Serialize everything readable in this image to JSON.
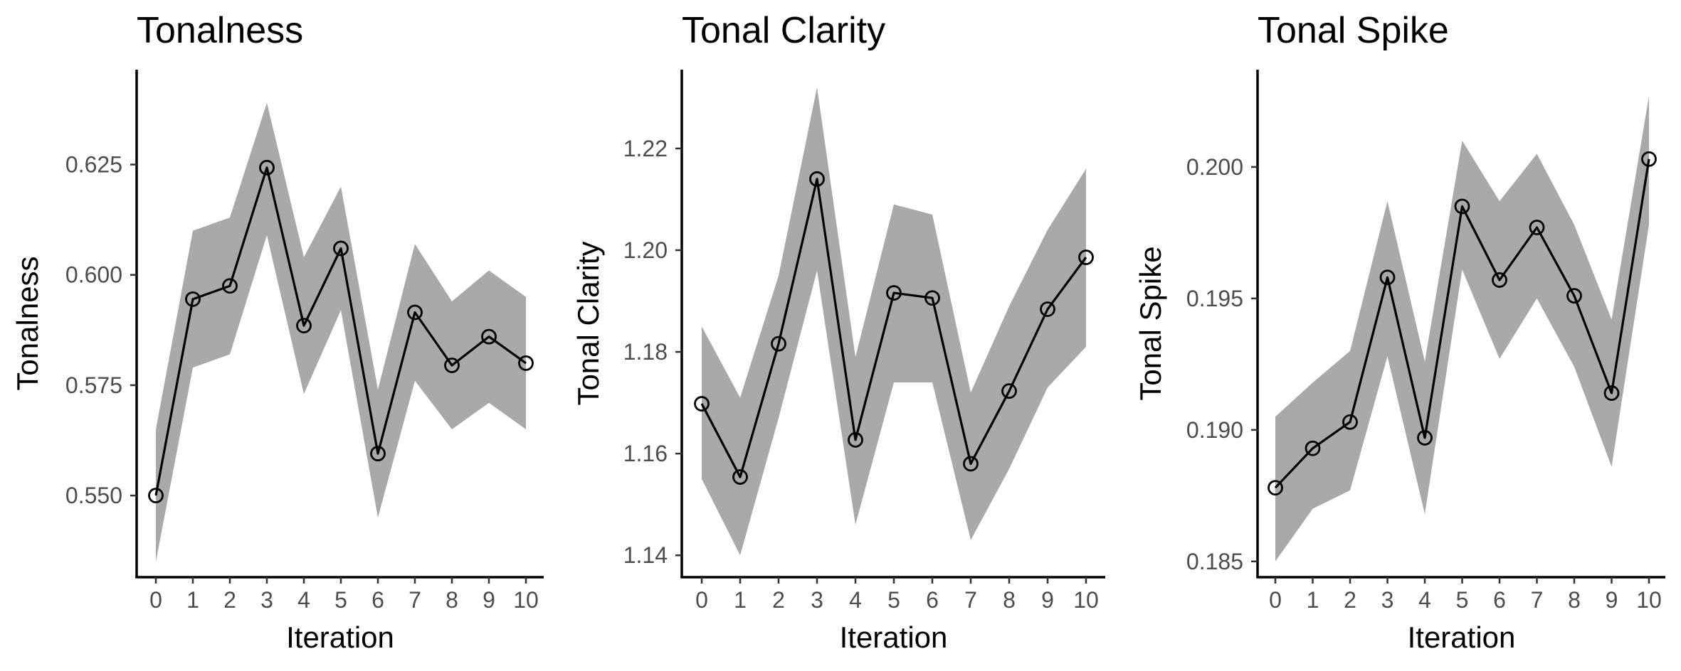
{
  "chart_data": [
    {
      "type": "line",
      "title": "Tonalness",
      "xlabel": "Iteration",
      "ylabel": "Tonalness",
      "x": [
        0,
        1,
        2,
        3,
        4,
        5,
        6,
        7,
        8,
        9,
        10
      ],
      "xticks": [
        "0",
        "1",
        "2",
        "3",
        "4",
        "5",
        "6",
        "7",
        "8",
        "9",
        "10"
      ],
      "y_ticks": [
        "0.550",
        "0.575",
        "0.600",
        "0.625"
      ],
      "ylim": [
        0.5315,
        0.6465
      ],
      "series": [
        {
          "values": [
            0.55,
            0.5945,
            0.5975,
            0.6243,
            0.5885,
            0.606,
            0.5595,
            0.5915,
            0.5795,
            0.586,
            0.58
          ],
          "lower": [
            0.535,
            0.579,
            0.582,
            0.609,
            0.573,
            0.592,
            0.545,
            0.576,
            0.565,
            0.571,
            0.565
          ],
          "upper": [
            0.565,
            0.61,
            0.613,
            0.639,
            0.604,
            0.62,
            0.574,
            0.607,
            0.594,
            0.601,
            0.595
          ]
        }
      ],
      "grid": false,
      "colors": {
        "line": "#000000",
        "ribbon": "#a9a9a9"
      }
    },
    {
      "type": "line",
      "title": "Tonal Clarity",
      "xlabel": "Iteration",
      "ylabel": "Tonal Clarity",
      "x": [
        0,
        1,
        2,
        3,
        4,
        5,
        6,
        7,
        8,
        9,
        10
      ],
      "xticks": [
        "0",
        "1",
        "2",
        "3",
        "4",
        "5",
        "6",
        "7",
        "8",
        "9",
        "10"
      ],
      "y_ticks": [
        "1.14",
        "1.16",
        "1.18",
        "1.20",
        "1.22"
      ],
      "ylim": [
        1.1357,
        1.2355
      ],
      "series": [
        {
          "values": [
            1.1698,
            1.1554,
            1.1816,
            1.214,
            1.1627,
            1.1916,
            1.1906,
            1.158,
            1.1723,
            1.1884,
            1.1986
          ],
          "lower": [
            1.155,
            1.14,
            1.167,
            1.196,
            1.146,
            1.174,
            1.174,
            1.143,
            1.157,
            1.173,
            1.181
          ],
          "upper": [
            1.185,
            1.171,
            1.195,
            1.232,
            1.179,
            1.209,
            1.207,
            1.172,
            1.189,
            1.204,
            1.216
          ]
        }
      ],
      "grid": false,
      "colors": {
        "line": "#000000",
        "ribbon": "#a9a9a9"
      }
    },
    {
      "type": "line",
      "title": "Tonal Spike",
      "xlabel": "Iteration",
      "ylabel": "Tonal Spike",
      "x": [
        0,
        1,
        2,
        3,
        4,
        5,
        6,
        7,
        8,
        9,
        10
      ],
      "xticks": [
        "0",
        "1",
        "2",
        "3",
        "4",
        "5",
        "6",
        "7",
        "8",
        "9",
        "10"
      ],
      "y_ticks": [
        "0.185",
        "0.190",
        "0.195",
        "0.200"
      ],
      "ylim": [
        0.1844,
        0.2037
      ],
      "series": [
        {
          "values": [
            0.1878,
            0.1893,
            0.1903,
            0.1958,
            0.1897,
            0.1985,
            0.1957,
            0.1977,
            0.1951,
            0.1914,
            0.2003
          ],
          "lower": [
            0.185,
            0.187,
            0.1877,
            0.1928,
            0.1868,
            0.1961,
            0.1927,
            0.195,
            0.1924,
            0.1886,
            0.1978
          ],
          "upper": [
            0.1905,
            0.1918,
            0.193,
            0.1987,
            0.1926,
            0.201,
            0.1987,
            0.2005,
            0.1978,
            0.1942,
            0.2027
          ]
        }
      ],
      "grid": false,
      "colors": {
        "line": "#000000",
        "ribbon": "#a9a9a9"
      }
    }
  ]
}
